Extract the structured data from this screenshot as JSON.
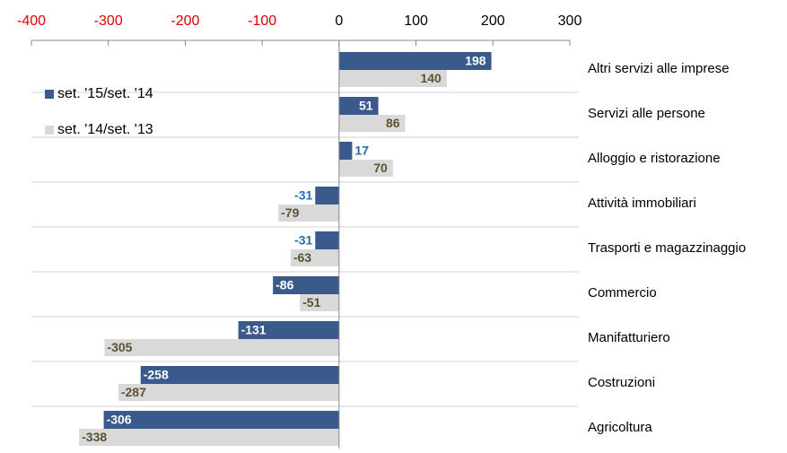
{
  "chart_data": {
    "type": "bar",
    "orientation": "horizontal",
    "categories": [
      "Altri servizi alle imprese",
      "Servizi alle persone",
      "Alloggio e ristorazione",
      "Attività immobiliari",
      "Trasporti e magazzinaggio",
      "Commercio",
      "Manifatturiero",
      "Costruzioni",
      "Agricoltura"
    ],
    "series": [
      {
        "name": "set. '15/set. '14",
        "color": "#3a5a8c",
        "label_color": "#ffffff",
        "outside_label_color": "#1f6fb5",
        "values": [
          198,
          51,
          17,
          -31,
          -31,
          -86,
          -131,
          -258,
          -306
        ]
      },
      {
        "name": "set. '14/set. '13",
        "color": "#d9d9d9",
        "label_color": "#5a5232",
        "outside_label_color": "#5a5232",
        "values": [
          140,
          86,
          70,
          -79,
          -63,
          -51,
          -305,
          -287,
          -338
        ]
      }
    ],
    "xlim": [
      -400,
      300
    ],
    "xticks": [
      -400,
      -300,
      -200,
      -100,
      0,
      100,
      200,
      300
    ],
    "negative_tick_color": "#e00000",
    "tick_color": "#000000",
    "legend": "upper left",
    "grid": true
  }
}
